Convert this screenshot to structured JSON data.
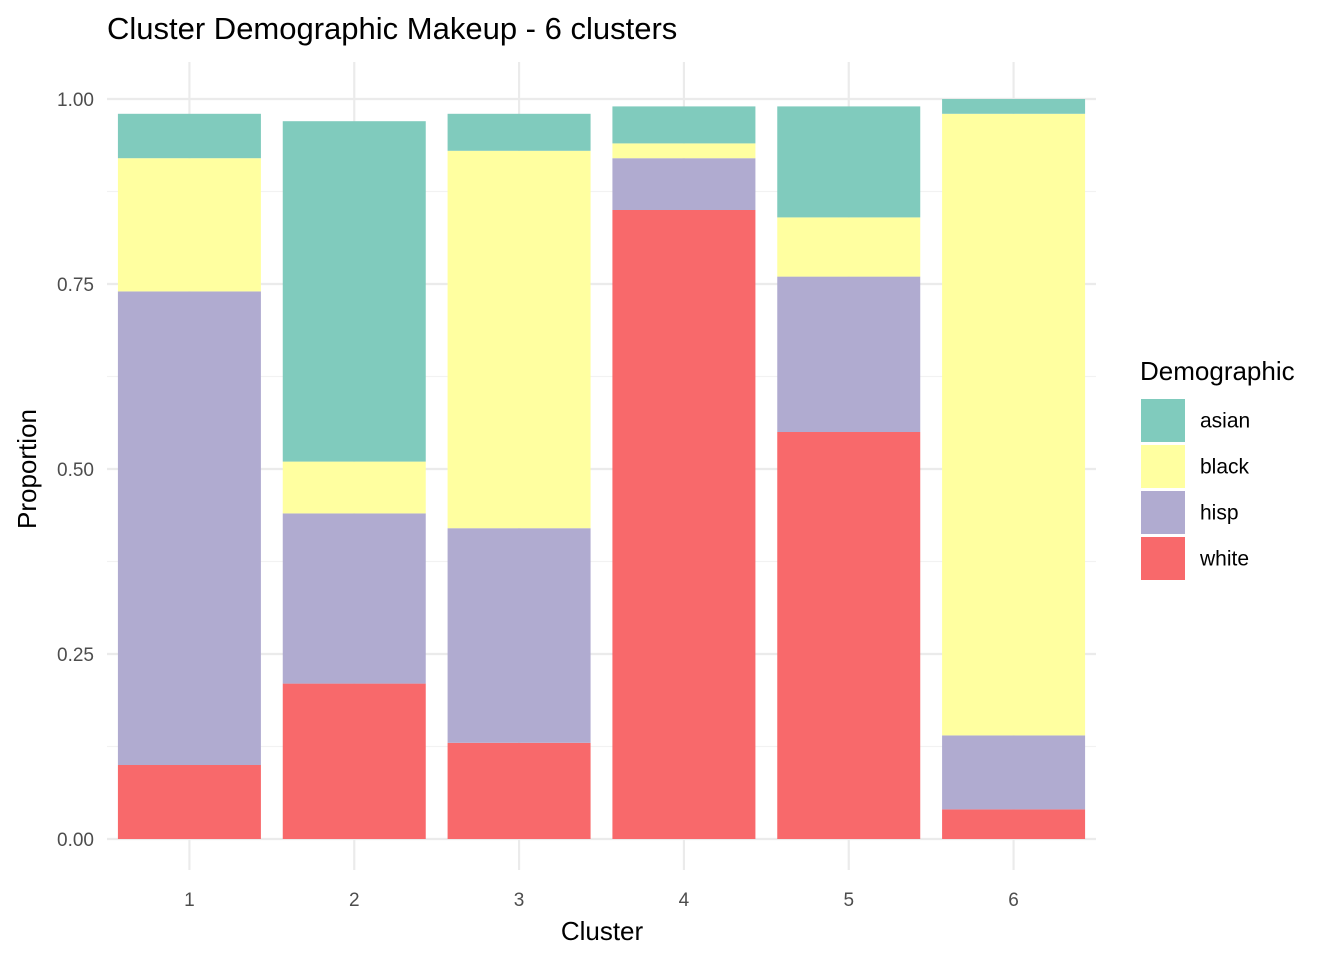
{
  "chart_data": {
    "type": "bar",
    "stacked": true,
    "title": "Cluster Demographic Makeup - 6 clusters",
    "xlabel": "Cluster",
    "ylabel": "Proportion",
    "categories": [
      "1",
      "2",
      "3",
      "4",
      "5",
      "6"
    ],
    "ylim": [
      0,
      1
    ],
    "yticks": [
      "0.00",
      "0.25",
      "0.50",
      "0.75",
      "1.00"
    ],
    "ytick_values": [
      0,
      0.25,
      0.5,
      0.75,
      1.0
    ],
    "grid": true,
    "legend": {
      "title": "Demographic",
      "placement": "right"
    },
    "series": [
      {
        "name": "white",
        "color": "#F8696B",
        "values": [
          0.1,
          0.21,
          0.13,
          0.85,
          0.55,
          0.04
        ]
      },
      {
        "name": "hisp",
        "color": "#B0ABD0",
        "values": [
          0.64,
          0.23,
          0.29,
          0.07,
          0.21,
          0.1
        ]
      },
      {
        "name": "black",
        "color": "#FFFFA0",
        "values": [
          0.18,
          0.07,
          0.51,
          0.02,
          0.08,
          0.84
        ]
      },
      {
        "name": "asian",
        "color": "#80CBBD",
        "values": [
          0.06,
          0.46,
          0.05,
          0.05,
          0.15,
          0.02
        ]
      }
    ],
    "legend_order": [
      "asian",
      "black",
      "hisp",
      "white"
    ]
  }
}
